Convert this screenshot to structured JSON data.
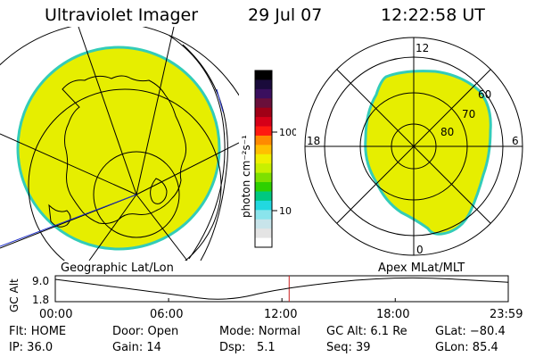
{
  "header": {
    "title": "Ultraviolet Imager",
    "date": "29 Jul 07",
    "time": "12:22:58 UT"
  },
  "colorbar": {
    "unit_label": "photon cm⁻²s⁻¹",
    "ticks": [
      "100",
      "10"
    ],
    "colors": [
      "#000000",
      "#1a0b3b",
      "#3a0f5e",
      "#6a0f3a",
      "#a00016",
      "#d60018",
      "#ff1a10",
      "#ff8a00",
      "#ffc000",
      "#f0f000",
      "#c8f000",
      "#7ee000",
      "#2ed000",
      "#00c880",
      "#22d8e0",
      "#8ae4ec",
      "#c8e4ea",
      "#e4e4e4",
      "#ffffff"
    ]
  },
  "polar_plot": {
    "hour_labels": {
      "top": "12",
      "left": "18",
      "right": "6",
      "bottom": "0"
    },
    "lat_labels": [
      "60",
      "70",
      "80"
    ],
    "fill_color": "#e6ee00",
    "edge_color": "#33ccb8"
  },
  "geo_plot": {
    "fill_color": "#e6ee00",
    "edge_color": "#33ccb8"
  },
  "timeline": {
    "ylabel": "GC Alt",
    "yticks": [
      "9.0",
      "1.8"
    ],
    "left_title": "Geographic Lat/Lon",
    "right_title": "Apex MLat/MLT",
    "xticks": [
      "00:00",
      "06:00",
      "12:00",
      "18:00",
      "23:59"
    ],
    "current_marker_color": "#cc2020",
    "chart_data": {
      "type": "line",
      "x": [
        "00:00",
        "06:00",
        "09:00",
        "12:00",
        "18:00",
        "23:59"
      ],
      "values": [
        8.0,
        4.0,
        1.8,
        5.6,
        9.0,
        7.2
      ],
      "current_time": "12:22:58",
      "ylim": [
        1.8,
        9.0
      ]
    }
  },
  "status": {
    "flt": "Flt: HOME",
    "ip": "IP: 36.0",
    "door": "Door: Open",
    "gain": "Gain: 14",
    "mode": "Mode: Normal",
    "dsp_label": "Dsp:",
    "dsp_value": "5.1",
    "gc_alt": "GC Alt: 6.1 Re",
    "seq": "Seq: 39",
    "glat": "GLat: −80.4",
    "glon": "GLon: 85.4"
  }
}
